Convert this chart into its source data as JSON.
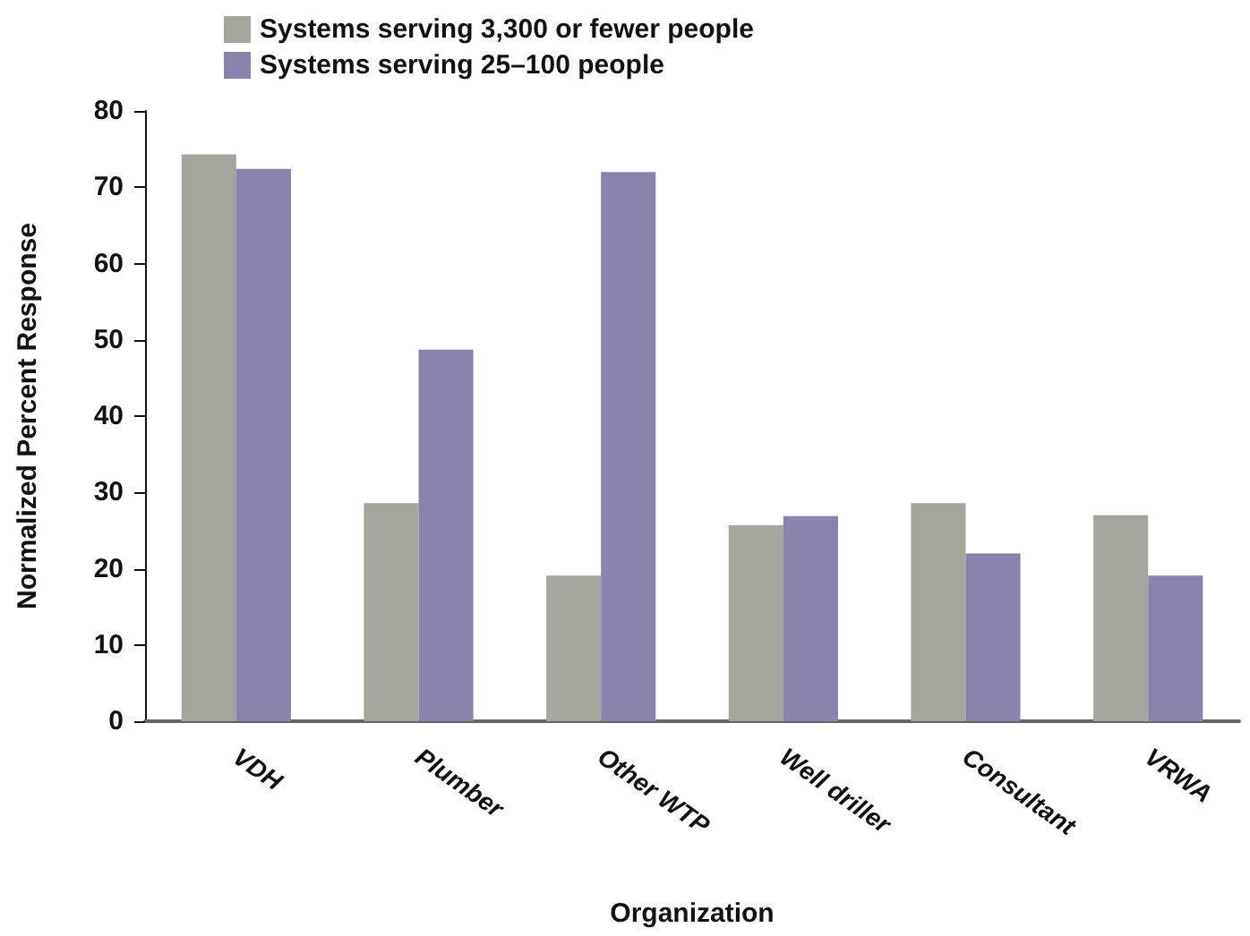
{
  "chart_data": {
    "type": "bar",
    "xlabel": "Organization",
    "ylabel": "Normalized Percent Response",
    "categories": [
      "VDH",
      "Plumber",
      "Other WTP",
      "Well driller",
      "Consultant",
      "VRWA"
    ],
    "series": [
      {
        "name": "Systems serving 3,300 or fewer people",
        "color": "#a5a79e",
        "values": [
          74.3,
          28.6,
          19.1,
          25.7,
          28.6,
          27.0
        ]
      },
      {
        "name": "Systems serving 25–100 people",
        "color": "#8883ab",
        "values": [
          72.4,
          48.7,
          72.0,
          26.9,
          22.0,
          19.1
        ]
      }
    ],
    "ylim": [
      0,
      80
    ],
    "yticks": [
      0,
      10,
      20,
      30,
      40,
      50,
      60,
      70,
      80
    ],
    "grid": false,
    "legend": "top left"
  }
}
